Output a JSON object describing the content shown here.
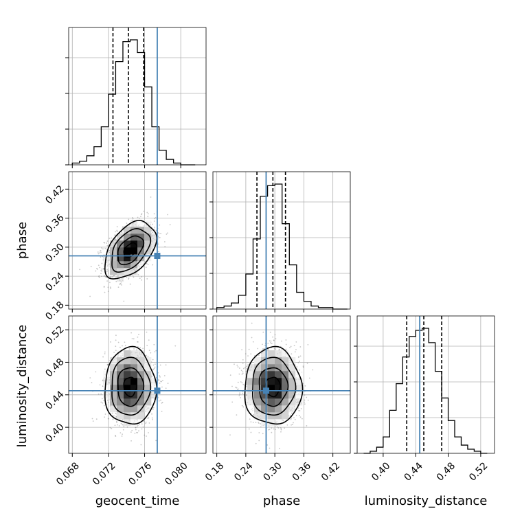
{
  "chart_data": {
    "type": "corner",
    "parameters": [
      "geocent_time",
      "phase",
      "luminosity_distance"
    ],
    "axis_labels": {
      "geocent_time": "geocent_time",
      "phase": "phase",
      "luminosity_distance": "luminosity_distance"
    },
    "ranges": {
      "geocent_time": [
        0.0676,
        0.0828
      ],
      "phase": [
        0.172,
        0.456
      ],
      "luminosity_distance": [
        0.368,
        0.537
      ]
    },
    "ticks": {
      "geocent_time": [
        0.068,
        0.072,
        0.076,
        0.08
      ],
      "phase": [
        0.18,
        0.24,
        0.3,
        0.36,
        0.42
      ],
      "luminosity_distance": [
        0.4,
        0.44,
        0.48,
        0.52
      ]
    },
    "tick_labels": {
      "geocent_time": [
        "0.068",
        "0.072",
        "0.076",
        "0.080"
      ],
      "phase": [
        "0.18",
        "0.24",
        "0.30",
        "0.36",
        "0.42"
      ],
      "luminosity_distance": [
        "0.40",
        "0.44",
        "0.48",
        "0.52"
      ]
    },
    "truths": {
      "geocent_time": 0.0774,
      "phase": 0.282,
      "luminosity_distance": 0.445
    },
    "quantiles": {
      "geocent_time": [
        0.0725,
        0.0742,
        0.0759
      ],
      "phase": [
        0.263,
        0.296,
        0.322
      ],
      "luminosity_distance": [
        0.429,
        0.45,
        0.472
      ]
    },
    "histograms": {
      "geocent_time": {
        "edges": [
          0.068,
          0.0688,
          0.0696,
          0.0704,
          0.0712,
          0.072,
          0.0728,
          0.0736,
          0.0744,
          0.0752,
          0.076,
          0.0768,
          0.0776,
          0.0784,
          0.0792,
          0.08,
          0.0808,
          0.0816
        ],
        "counts": [
          1,
          2,
          5,
          10,
          21,
          39,
          57,
          68,
          69,
          62,
          43,
          21,
          8,
          3,
          1,
          0,
          0
        ]
      },
      "phase": {
        "edges": [
          0.18,
          0.195,
          0.21,
          0.225,
          0.24,
          0.255,
          0.27,
          0.285,
          0.3,
          0.315,
          0.33,
          0.345,
          0.36,
          0.375,
          0.39,
          0.405,
          0.42,
          0.435,
          0.45
        ],
        "counts": [
          1,
          2,
          4,
          9,
          23,
          46,
          74,
          81,
          82,
          56,
          29,
          11,
          5,
          2,
          1,
          1,
          0,
          0
        ]
      },
      "luminosity_distance": {
        "edges": [
          0.376,
          0.384,
          0.392,
          0.4,
          0.408,
          0.416,
          0.424,
          0.432,
          0.44,
          0.448,
          0.456,
          0.464,
          0.472,
          0.48,
          0.488,
          0.496,
          0.504,
          0.512,
          0.52,
          0.528
        ],
        "counts": [
          0,
          1,
          3,
          8,
          21,
          34,
          47,
          57,
          60,
          61,
          54,
          40,
          27,
          16,
          8,
          4,
          2,
          1,
          0
        ]
      }
    },
    "hist2d": {
      "phase_vs_geocent_time": {
        "mean": [
          0.0744,
          0.294
        ],
        "sd": [
          0.0012,
          0.025
        ],
        "rho": 0.45
      },
      "luminosity_distance_vs_geocent_time": {
        "mean": [
          0.0744,
          0.45
        ],
        "sd": [
          0.0012,
          0.02
        ],
        "rho": 0.0
      },
      "luminosity_distance_vs_phase": {
        "mean": [
          0.296,
          0.45
        ],
        "sd": [
          0.025,
          0.02
        ],
        "rho": 0.0
      }
    },
    "grid": true,
    "colors": {
      "truth": "#4682b4",
      "hist": "#000000",
      "grid": "#b0b0b0",
      "contour": "#000000",
      "points": "#808080"
    }
  }
}
